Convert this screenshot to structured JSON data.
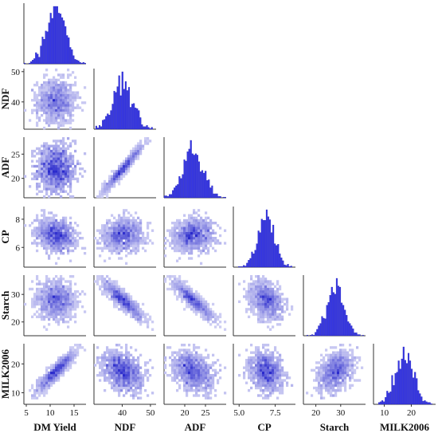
{
  "chart_data": {
    "type": "pairplot",
    "variables": [
      "DM Yield",
      "NDF",
      "ADF",
      "CP",
      "Starch",
      "MILK2006"
    ],
    "hist_color": "#3535e6",
    "density_low_color": "#dcdcf7",
    "density_high_color": "#2a2acc",
    "diag_ranges": [
      [
        4.5,
        17.5
      ],
      [
        30,
        52
      ],
      [
        15,
        30
      ],
      [
        4.6,
        8.9
      ],
      [
        15,
        40
      ],
      [
        6,
        29
      ]
    ],
    "ticks": {
      "DM Yield": [
        5,
        10,
        15
      ],
      "NDF": [
        40,
        50
      ],
      "ADF": [
        20,
        25
      ],
      "CP": [
        5.0,
        7.5
      ],
      "Starch": [
        20,
        30
      ],
      "MILK2006": [
        10,
        20
      ]
    },
    "row_axes": {
      "NDF": {
        "ticks": [
          40,
          50
        ],
        "range": [
          31,
          51
        ]
      },
      "ADF": {
        "ticks": [
          20,
          25
        ],
        "range": [
          16,
          28.5
        ]
      },
      "CP": {
        "ticks": [
          6,
          8
        ],
        "range": [
          4.6,
          8.9
        ]
      },
      "Starch": {
        "ticks": [
          20,
          30
        ],
        "range": [
          15,
          37
        ]
      },
      "MILK2006": {
        "ticks": [
          10,
          20
        ],
        "range": [
          6,
          27
        ]
      }
    },
    "means": [
      11.2,
      40.2,
      22.0,
      6.9,
      28.0,
      17.5
    ],
    "sds": [
      2.0,
      3.5,
      2.4,
      0.6,
      3.4,
      3.3
    ],
    "correlations": [
      [
        1.0,
        0.0,
        0.0,
        -0.2,
        0.0,
        0.97
      ],
      [
        0.0,
        1.0,
        0.97,
        0.1,
        -0.88,
        -0.35
      ],
      [
        0.0,
        0.97,
        1.0,
        0.1,
        -0.9,
        -0.35
      ],
      [
        -0.2,
        0.1,
        0.1,
        1.0,
        -0.3,
        -0.2
      ],
      [
        0.0,
        -0.88,
        -0.9,
        -0.3,
        1.0,
        0.4
      ],
      [
        0.97,
        -0.35,
        -0.35,
        -0.2,
        0.4,
        1.0
      ]
    ]
  }
}
